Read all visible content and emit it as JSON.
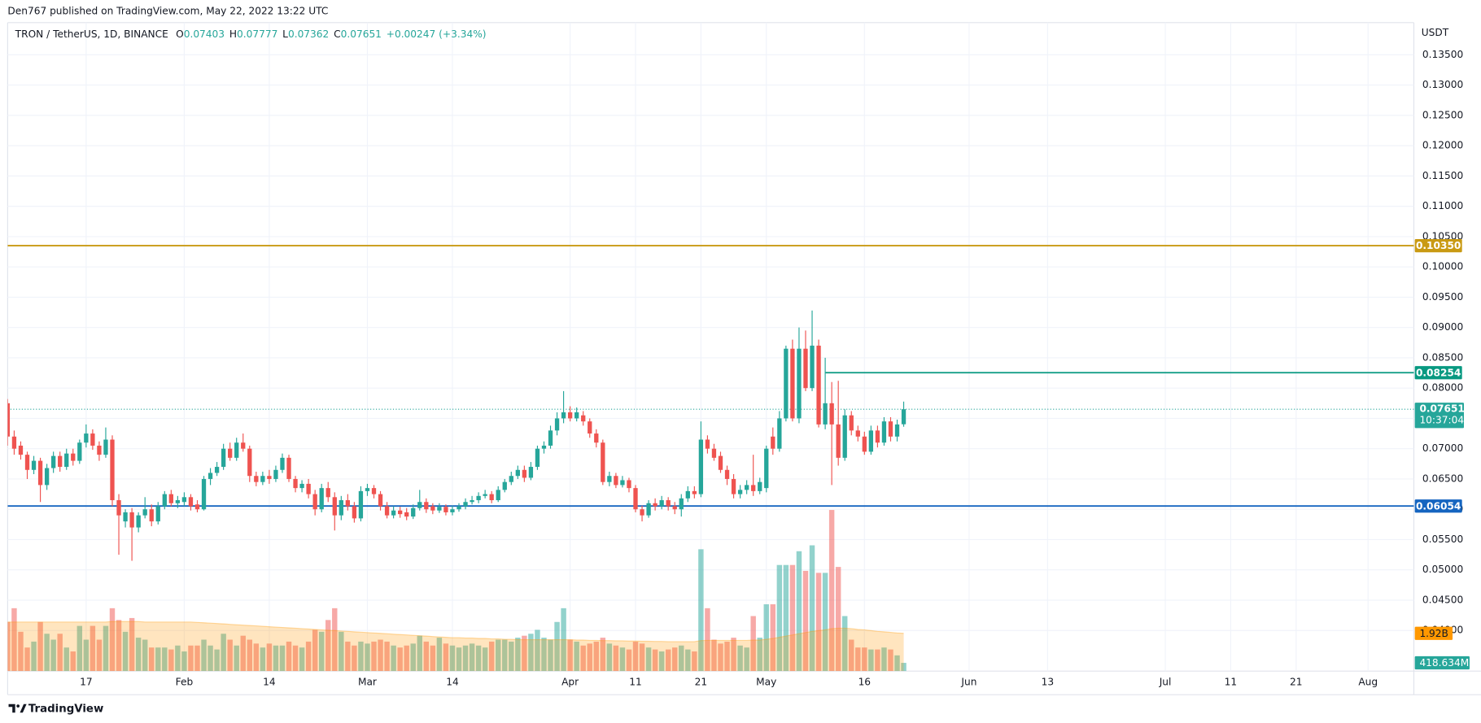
{
  "header": {
    "published": "Den767 published on TradingView.com, May 22, 2022 13:22 UTC"
  },
  "footer": {
    "brand": "TradingView"
  },
  "chart_data": {
    "type": "candlestick",
    "title": "TRON / TetherUS, 1D, BINANCE",
    "ohlc_labels": [
      "O",
      "H",
      "L",
      "C"
    ],
    "change": "+0.00247 (+3.34%)",
    "y_axis_unit": "USDT",
    "countdown": "10:37:04",
    "up_color": "#26a69a",
    "down_color": "#ef5350",
    "grid": true,
    "x": [
      "2022-01-05",
      "2022-01-06",
      "2022-01-07",
      "2022-01-08",
      "2022-01-09",
      "2022-01-10",
      "2022-01-11",
      "2022-01-12",
      "2022-01-13",
      "2022-01-14",
      "2022-01-15",
      "2022-01-16",
      "2022-01-17",
      "2022-01-18",
      "2022-01-19",
      "2022-01-20",
      "2022-01-21",
      "2022-01-22",
      "2022-01-23",
      "2022-01-24",
      "2022-01-25",
      "2022-01-26",
      "2022-01-27",
      "2022-01-28",
      "2022-01-29",
      "2022-01-30",
      "2022-01-31",
      "2022-02-01",
      "2022-02-02",
      "2022-02-03",
      "2022-02-04",
      "2022-02-05",
      "2022-02-06",
      "2022-02-07",
      "2022-02-08",
      "2022-02-09",
      "2022-02-10",
      "2022-02-11",
      "2022-02-12",
      "2022-02-13",
      "2022-02-14",
      "2022-02-15",
      "2022-02-16",
      "2022-02-17",
      "2022-02-18",
      "2022-02-19",
      "2022-02-20",
      "2022-02-21",
      "2022-02-22",
      "2022-02-23",
      "2022-02-24",
      "2022-02-25",
      "2022-02-26",
      "2022-02-27",
      "2022-02-28",
      "2022-03-01",
      "2022-03-02",
      "2022-03-03",
      "2022-03-04",
      "2022-03-05",
      "2022-03-06",
      "2022-03-07",
      "2022-03-08",
      "2022-03-09",
      "2022-03-10",
      "2022-03-11",
      "2022-03-12",
      "2022-03-13",
      "2022-03-14",
      "2022-03-15",
      "2022-03-16",
      "2022-03-17",
      "2022-03-18",
      "2022-03-19",
      "2022-03-20",
      "2022-03-21",
      "2022-03-22",
      "2022-03-23",
      "2022-03-24",
      "2022-03-25",
      "2022-03-26",
      "2022-03-27",
      "2022-03-28",
      "2022-03-29",
      "2022-03-30",
      "2022-03-31",
      "2022-04-01",
      "2022-04-02",
      "2022-04-03",
      "2022-04-04",
      "2022-04-05",
      "2022-04-06",
      "2022-04-07",
      "2022-04-08",
      "2022-04-09",
      "2022-04-10",
      "2022-04-11",
      "2022-04-12",
      "2022-04-13",
      "2022-04-14",
      "2022-04-15",
      "2022-04-16",
      "2022-04-17",
      "2022-04-18",
      "2022-04-19",
      "2022-04-20",
      "2022-04-21",
      "2022-04-22",
      "2022-04-23",
      "2022-04-24",
      "2022-04-25",
      "2022-04-26",
      "2022-04-27",
      "2022-04-28",
      "2022-04-29",
      "2022-04-30",
      "2022-05-01",
      "2022-05-02",
      "2022-05-03",
      "2022-05-04",
      "2022-05-05",
      "2022-05-06",
      "2022-05-07",
      "2022-05-08",
      "2022-05-09",
      "2022-05-10",
      "2022-05-11",
      "2022-05-12",
      "2022-05-13",
      "2022-05-14",
      "2022-05-15",
      "2022-05-16",
      "2022-05-17",
      "2022-05-18",
      "2022-05-19",
      "2022-05-20",
      "2022-05-21",
      "2022-05-22"
    ],
    "open": [
      0.0775,
      0.072,
      0.0705,
      0.069,
      0.0665,
      0.068,
      0.064,
      0.0668,
      0.0688,
      0.067,
      0.0692,
      0.068,
      0.071,
      0.0725,
      0.0705,
      0.069,
      0.0715,
      0.0615,
      0.058,
      0.0595,
      0.057,
      0.059,
      0.06,
      0.058,
      0.0605,
      0.0625,
      0.061,
      0.0612,
      0.062,
      0.0608,
      0.06,
      0.065,
      0.066,
      0.067,
      0.07,
      0.0685,
      0.071,
      0.07,
      0.0655,
      0.0645,
      0.0655,
      0.065,
      0.0665,
      0.0685,
      0.065,
      0.0635,
      0.0642,
      0.0625,
      0.06,
      0.0635,
      0.062,
      0.059,
      0.0615,
      0.0605,
      0.0585,
      0.063,
      0.0635,
      0.0625,
      0.0605,
      0.059,
      0.0598,
      0.0595,
      0.0588,
      0.0602,
      0.0612,
      0.0605,
      0.0598,
      0.0604,
      0.0595,
      0.06,
      0.0605,
      0.0612,
      0.0615,
      0.0622,
      0.0625,
      0.0615,
      0.0632,
      0.0645,
      0.0655,
      0.0665,
      0.0652,
      0.067,
      0.07,
      0.0705,
      0.073,
      0.075,
      0.076,
      0.075,
      0.0755,
      0.0745,
      0.0725,
      0.071,
      0.0645,
      0.0655,
      0.064,
      0.0648,
      0.0635,
      0.06,
      0.059,
      0.061,
      0.0605,
      0.0615,
      0.0605,
      0.06,
      0.0618,
      0.063,
      0.0625,
      0.0715,
      0.07,
      0.0688,
      0.0665,
      0.065,
      0.0625,
      0.0632,
      0.064,
      0.063,
      0.0635,
      0.072,
      0.07,
      0.075,
      0.0865,
      0.075,
      0.0865,
      0.08,
      0.087,
      0.074,
      0.0775,
      0.074,
      0.0685,
      0.0755,
      0.073,
      0.072,
      0.0695,
      0.073,
      0.071,
      0.0745,
      0.072,
      0.07403
    ],
    "high": [
      0.0782,
      0.073,
      0.0712,
      0.0695,
      0.0688,
      0.0685,
      0.0675,
      0.0695,
      0.0695,
      0.07,
      0.07,
      0.0715,
      0.074,
      0.0732,
      0.0712,
      0.0735,
      0.0722,
      0.0625,
      0.06,
      0.0602,
      0.0595,
      0.062,
      0.0608,
      0.0612,
      0.063,
      0.0632,
      0.0622,
      0.0628,
      0.0625,
      0.0615,
      0.0655,
      0.0668,
      0.0678,
      0.0708,
      0.071,
      0.0718,
      0.0725,
      0.0705,
      0.0662,
      0.0662,
      0.0665,
      0.0672,
      0.0692,
      0.069,
      0.0655,
      0.0648,
      0.065,
      0.0632,
      0.0642,
      0.0645,
      0.0628,
      0.0622,
      0.0625,
      0.0612,
      0.0638,
      0.0642,
      0.064,
      0.063,
      0.0612,
      0.0605,
      0.0604,
      0.0602,
      0.0608,
      0.0632,
      0.0618,
      0.061,
      0.061,
      0.0608,
      0.0606,
      0.061,
      0.0618,
      0.0622,
      0.0628,
      0.0632,
      0.063,
      0.0638,
      0.065,
      0.0662,
      0.0672,
      0.0672,
      0.0678,
      0.0705,
      0.0712,
      0.0738,
      0.076,
      0.0795,
      0.077,
      0.0768,
      0.0762,
      0.075,
      0.0732,
      0.0715,
      0.0662,
      0.066,
      0.0655,
      0.0652,
      0.064,
      0.0606,
      0.0615,
      0.0618,
      0.0622,
      0.062,
      0.0612,
      0.0625,
      0.0638,
      0.0638,
      0.0745,
      0.0722,
      0.0708,
      0.0695,
      0.0672,
      0.0658,
      0.064,
      0.0648,
      0.069,
      0.0652,
      0.0705,
      0.0735,
      0.0762,
      0.087,
      0.088,
      0.09,
      0.0895,
      0.0928,
      0.088,
      0.085,
      0.081,
      0.0812,
      0.0765,
      0.0762,
      0.0738,
      0.0728,
      0.0738,
      0.0738,
      0.0752,
      0.0752,
      0.0748,
      0.07777
    ],
    "low": [
      0.0705,
      0.069,
      0.0682,
      0.065,
      0.0658,
      0.0612,
      0.0632,
      0.066,
      0.0662,
      0.0665,
      0.0672,
      0.0675,
      0.0702,
      0.0698,
      0.068,
      0.0685,
      0.0605,
      0.0525,
      0.057,
      0.0515,
      0.0562,
      0.0585,
      0.0572,
      0.0575,
      0.06,
      0.0605,
      0.0602,
      0.0605,
      0.0598,
      0.0595,
      0.0598,
      0.064,
      0.0655,
      0.0665,
      0.068,
      0.068,
      0.0695,
      0.0645,
      0.0638,
      0.064,
      0.0642,
      0.0645,
      0.066,
      0.0645,
      0.0628,
      0.0628,
      0.0618,
      0.059,
      0.0595,
      0.0612,
      0.0565,
      0.0582,
      0.0598,
      0.0578,
      0.058,
      0.0622,
      0.0618,
      0.0598,
      0.0585,
      0.0585,
      0.0586,
      0.0582,
      0.0584,
      0.0598,
      0.0594,
      0.0592,
      0.0594,
      0.059,
      0.059,
      0.0596,
      0.06,
      0.0608,
      0.061,
      0.0618,
      0.061,
      0.0612,
      0.0628,
      0.064,
      0.065,
      0.0645,
      0.0648,
      0.0665,
      0.0692,
      0.07,
      0.0722,
      0.0742,
      0.0745,
      0.0745,
      0.0738,
      0.0718,
      0.0702,
      0.064,
      0.0638,
      0.0635,
      0.0636,
      0.0628,
      0.0595,
      0.058,
      0.0586,
      0.0598,
      0.06,
      0.0598,
      0.0592,
      0.0588,
      0.0612,
      0.0618,
      0.062,
      0.0692,
      0.068,
      0.066,
      0.064,
      0.0618,
      0.0618,
      0.0625,
      0.0622,
      0.0625,
      0.0628,
      0.069,
      0.0695,
      0.0745,
      0.0745,
      0.0742,
      0.0795,
      0.0795,
      0.0735,
      0.0732,
      0.064,
      0.0672,
      0.068,
      0.0722,
      0.0712,
      0.069,
      0.069,
      0.0702,
      0.0705,
      0.0712,
      0.0712,
      0.07362
    ],
    "close": [
      0.072,
      0.07,
      0.069,
      0.0665,
      0.068,
      0.064,
      0.0668,
      0.0688,
      0.067,
      0.0692,
      0.068,
      0.071,
      0.0725,
      0.0705,
      0.069,
      0.0715,
      0.0615,
      0.059,
      0.0595,
      0.057,
      0.059,
      0.06,
      0.058,
      0.0605,
      0.0625,
      0.061,
      0.0615,
      0.062,
      0.0605,
      0.06,
      0.065,
      0.066,
      0.067,
      0.07,
      0.0685,
      0.071,
      0.07,
      0.0655,
      0.0645,
      0.0655,
      0.065,
      0.0665,
      0.0685,
      0.065,
      0.0635,
      0.0642,
      0.0625,
      0.06,
      0.0635,
      0.062,
      0.059,
      0.0615,
      0.0605,
      0.0585,
      0.063,
      0.0635,
      0.0625,
      0.0605,
      0.059,
      0.0598,
      0.0592,
      0.0588,
      0.0602,
      0.0612,
      0.06,
      0.0598,
      0.0604,
      0.0595,
      0.06,
      0.0605,
      0.0612,
      0.0615,
      0.0622,
      0.0625,
      0.0615,
      0.0632,
      0.0645,
      0.0655,
      0.0665,
      0.0652,
      0.067,
      0.07,
      0.0705,
      0.073,
      0.075,
      0.076,
      0.075,
      0.076,
      0.0745,
      0.0725,
      0.071,
      0.0645,
      0.0655,
      0.064,
      0.0648,
      0.0635,
      0.06,
      0.059,
      0.061,
      0.0605,
      0.0615,
      0.0605,
      0.06,
      0.0618,
      0.063,
      0.0625,
      0.0715,
      0.07,
      0.0685,
      0.0665,
      0.065,
      0.0625,
      0.0632,
      0.064,
      0.063,
      0.0645,
      0.07,
      0.07,
      0.075,
      0.0865,
      0.075,
      0.0865,
      0.08,
      0.087,
      0.074,
      0.0775,
      0.074,
      0.0685,
      0.0755,
      0.073,
      0.072,
      0.0695,
      0.073,
      0.071,
      0.0745,
      0.072,
      0.074,
      0.07651
    ],
    "volume": [
      2500000000.0,
      3200000000.0,
      2000000000.0,
      1200000000.0,
      1500000000.0,
      2500000000.0,
      1900000000.0,
      1600000000.0,
      1900000000.0,
      1200000000.0,
      1000000000.0,
      2300000000.0,
      1600000000.0,
      2300000000.0,
      1600000000.0,
      2300000000.0,
      3200000000.0,
      2600000000.0,
      2000000000.0,
      2700000000.0,
      1700000000.0,
      1600000000.0,
      1200000000.0,
      1200000000.0,
      1200000000.0,
      1100000000.0,
      1300000000.0,
      1000000000.0,
      1300000000.0,
      1300000000.0,
      1600000000.0,
      1300000000.0,
      1100000000.0,
      1900000000.0,
      1600000000.0,
      1300000000.0,
      1800000000.0,
      1600000000.0,
      1400000000.0,
      1200000000.0,
      1400000000.0,
      1300000000.0,
      1300000000.0,
      1500000000.0,
      1300000000.0,
      1200000000.0,
      1500000000.0,
      2100000000.0,
      2000000000.0,
      2600000000.0,
      3200000000.0,
      2000000000.0,
      1500000000.0,
      1300000000.0,
      1500000000.0,
      1400000000.0,
      1500000000.0,
      1600000000.0,
      1500000000.0,
      1300000000.0,
      1200000000.0,
      1300000000.0,
      1400000000.0,
      1800000000.0,
      1500000000.0,
      1300000000.0,
      1700000000.0,
      1400000000.0,
      1300000000.0,
      1200000000.0,
      1300000000.0,
      1400000000.0,
      1300000000.0,
      1200000000.0,
      1500000000.0,
      1600000000.0,
      1600000000.0,
      1500000000.0,
      1700000000.0,
      1800000000.0,
      1900000000.0,
      2100000000.0,
      1700000000.0,
      1600000000.0,
      2500000000.0,
      3200000000.0,
      1600000000.0,
      1500000000.0,
      1300000000.0,
      1400000000.0,
      1500000000.0,
      1700000000.0,
      1400000000.0,
      1300000000.0,
      1200000000.0,
      1100000000.0,
      1500000000.0,
      1400000000.0,
      1200000000.0,
      1100000000.0,
      1000000000.0,
      1100000000.0,
      1200000000.0,
      1300000000.0,
      1100000000.0,
      1000000000.0,
      6200000000.0,
      3200000000.0,
      1600000000.0,
      1400000000.0,
      1500000000.0,
      1700000000.0,
      1300000000.0,
      1200000000.0,
      2800000000.0,
      1700000000.0,
      3400000000.0,
      3400000000.0,
      5400000000.0,
      5400000000.0,
      5400000000.0,
      6100000000.0,
      5100000000.0,
      6400000000.0,
      5000000000.0,
      5000000000.0,
      8200000000.0,
      5300000000.0,
      2800000000.0,
      1600000000.0,
      1200000000.0,
      1200000000.0,
      1100000000.0,
      1100000000.0,
      1200000000.0,
      1100000000.0,
      800000000.0,
      418634000
    ],
    "volume_label": "418.634M",
    "volume_ma": [
      2500000000.0,
      2500000000.0,
      2500000000.0,
      2500000000.0,
      2500000000.0,
      2500000000.0,
      2500000000.0,
      2500000000.0,
      2500000000.0,
      2500000000.0,
      2500000000.0,
      2500000000.0,
      2500000000.0,
      2500000000.0,
      2500000000.0,
      2500000000.0,
      2520000000.0,
      2520000000.0,
      2520000000.0,
      2520000000.0,
      2520000000.0,
      2500000000.0,
      2500000000.0,
      2500000000.0,
      2500000000.0,
      2500000000.0,
      2500000000.0,
      2500000000.0,
      2500000000.0,
      2480000000.0,
      2460000000.0,
      2440000000.0,
      2420000000.0,
      2400000000.0,
      2380000000.0,
      2360000000.0,
      2340000000.0,
      2320000000.0,
      2300000000.0,
      2280000000.0,
      2260000000.0,
      2240000000.0,
      2220000000.0,
      2200000000.0,
      2180000000.0,
      2160000000.0,
      2140000000.0,
      2120000000.0,
      2100000000.0,
      2080000000.0,
      2060000000.0,
      2040000000.0,
      2020000000.0,
      2000000000.0,
      1980000000.0,
      1960000000.0,
      1940000000.0,
      1920000000.0,
      1900000000.0,
      1880000000.0,
      1860000000.0,
      1840000000.0,
      1820000000.0,
      1800000000.0,
      1780000000.0,
      1760000000.0,
      1740000000.0,
      1720000000.0,
      1700000000.0,
      1700000000.0,
      1680000000.0,
      1680000000.0,
      1660000000.0,
      1660000000.0,
      1640000000.0,
      1640000000.0,
      1620000000.0,
      1620000000.0,
      1600000000.0,
      1600000000.0,
      1600000000.0,
      1600000000.0,
      1600000000.0,
      1600000000.0,
      1600000000.0,
      1600000000.0,
      1600000000.0,
      1580000000.0,
      1580000000.0,
      1560000000.0,
      1560000000.0,
      1550000000.0,
      1550000000.0,
      1540000000.0,
      1540000000.0,
      1530000000.0,
      1530000000.0,
      1520000000.0,
      1520000000.0,
      1510000000.0,
      1510000000.0,
      1500000000.0,
      1500000000.0,
      1500000000.0,
      1500000000.0,
      1500000000.0,
      1550000000.0,
      1560000000.0,
      1560000000.0,
      1560000000.0,
      1560000000.0,
      1560000000.0,
      1560000000.0,
      1560000000.0,
      1580000000.0,
      1580000000.0,
      1620000000.0,
      1660000000.0,
      1720000000.0,
      1780000000.0,
      1840000000.0,
      1900000000.0,
      1960000000.0,
      2020000000.0,
      2060000000.0,
      2100000000.0,
      2160000000.0,
      2180000000.0,
      2180000000.0,
      2160000000.0,
      2120000000.0,
      2100000000.0,
      2060000000.0,
      2020000000.0,
      2000000000.0,
      1970000000.0,
      1940000000.0,
      1920000000.0
    ],
    "volume_ma_label": "1.92B",
    "volume_ma_color": "#ff9800",
    "vlim": [
      0,
      33000000000.0
    ],
    "xlim": [
      "2022-01-05",
      "2022-08-08"
    ],
    "xticks": [
      {
        "value": "2022-01-17",
        "label": "17"
      },
      {
        "value": "2022-02-01",
        "label": "Feb"
      },
      {
        "value": "2022-02-14",
        "label": "14"
      },
      {
        "value": "2022-03-01",
        "label": "Mar"
      },
      {
        "value": "2022-03-14",
        "label": "14"
      },
      {
        "value": "2022-04-01",
        "label": "Apr"
      },
      {
        "value": "2022-04-11",
        "label": "11"
      },
      {
        "value": "2022-04-21",
        "label": "21"
      },
      {
        "value": "2022-05-01",
        "label": "May"
      },
      {
        "value": "2022-05-16",
        "label": "16"
      },
      {
        "value": "2022-06-01",
        "label": "Jun"
      },
      {
        "value": "2022-06-13",
        "label": "13"
      },
      {
        "value": "2022-07-01",
        "label": "Jul"
      },
      {
        "value": "2022-07-11",
        "label": "11"
      },
      {
        "value": "2022-07-21",
        "label": "21"
      },
      {
        "value": "2022-08-01",
        "label": "Aug"
      }
    ],
    "ylim": [
      0.0333,
      0.1403
    ],
    "yticks": [
      {
        "value": 0.04,
        "label": "0.04000"
      },
      {
        "value": 0.045,
        "label": "0.04500"
      },
      {
        "value": 0.05,
        "label": "0.05000"
      },
      {
        "value": 0.055,
        "label": "0.05500"
      },
      {
        "value": 0.06,
        "label": "0.06000"
      },
      {
        "value": 0.065,
        "label": "0.06500"
      },
      {
        "value": 0.07,
        "label": "0.07000"
      },
      {
        "value": 0.075,
        "label": "0.07500"
      },
      {
        "value": 0.08,
        "label": "0.08000"
      },
      {
        "value": 0.085,
        "label": "0.08500"
      },
      {
        "value": 0.09,
        "label": "0.09000"
      },
      {
        "value": 0.095,
        "label": "0.09500"
      },
      {
        "value": 0.1,
        "label": "0.10000"
      },
      {
        "value": 0.105,
        "label": "0.10500"
      },
      {
        "value": 0.11,
        "label": "0.11000"
      },
      {
        "value": 0.115,
        "label": "0.11500"
      },
      {
        "value": 0.12,
        "label": "0.12000"
      },
      {
        "value": 0.125,
        "label": "0.12500"
      },
      {
        "value": 0.13,
        "label": "0.13000"
      },
      {
        "value": 0.135,
        "label": "0.13500"
      }
    ],
    "levels": [
      {
        "value": 0.1035,
        "label": "0.10350",
        "color": "#c99a13"
      },
      {
        "value": 0.08254,
        "color": "#089981",
        "start": "2022-05-10"
      },
      {
        "value": 0.06054,
        "color": "#1565c0"
      }
    ]
  }
}
